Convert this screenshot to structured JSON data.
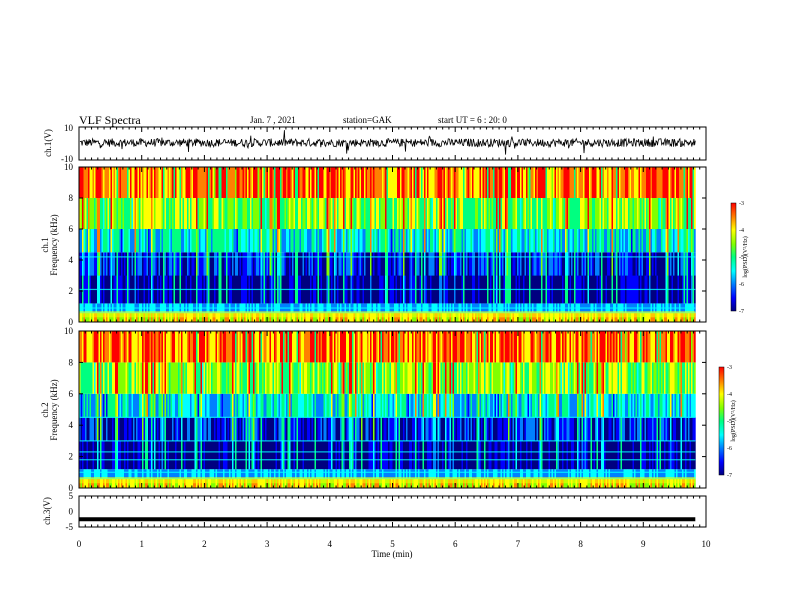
{
  "header": {
    "title": "VLF Spectra",
    "date": "Jan. 7 , 2021",
    "station": "station=GAK",
    "start_ut": "start UT = 6 : 20: 0"
  },
  "colors": {
    "spectrogram_scale": [
      "#000080",
      "#0000ff",
      "#0080ff",
      "#00ffff",
      "#00ff80",
      "#80ff00",
      "#ffff00",
      "#ff8000",
      "#ff0000"
    ],
    "background": "#ffffff",
    "axis": "#000000"
  },
  "chart_data": [
    {
      "type": "line",
      "name": "ch1-waveform",
      "ylabel": "ch.1(V)",
      "ylim": [
        -10,
        10
      ],
      "yticks": [
        "-10",
        "10"
      ],
      "xlim": [
        0,
        10
      ],
      "x_unit": "min",
      "baseline": 0.5,
      "amplitude": 2.5,
      "grid": false
    },
    {
      "type": "heatmap",
      "name": "ch1-spectrogram",
      "panel_label": "ch.1",
      "ylabel": "Frequency (kHz)",
      "ylim": [
        0,
        10
      ],
      "yticks": [
        "0",
        "2",
        "4",
        "6",
        "8",
        "10"
      ],
      "xlim": [
        0,
        10
      ],
      "data_end_min": 9.83,
      "colorbar": {
        "label": "log(PSD)(V²/Hz)",
        "range": [
          -7,
          -3
        ],
        "ticks": [
          "-3",
          "-4",
          "-5",
          "-6",
          "-7"
        ]
      }
    },
    {
      "type": "heatmap",
      "name": "ch2-spectrogram",
      "panel_label": "ch.2",
      "ylabel": "Frequency (kHz)",
      "ylim": [
        0,
        10
      ],
      "yticks": [
        "0",
        "2",
        "4",
        "6",
        "8",
        "10"
      ],
      "xlim": [
        0,
        10
      ],
      "data_end_min": 9.83,
      "colorbar": {
        "label": "log(PSD)(V²/Hz)",
        "range": [
          -7,
          -3
        ],
        "ticks": [
          "-3",
          "-4",
          "-5",
          "-6",
          "-7"
        ]
      }
    },
    {
      "type": "line",
      "name": "ch3-waveform",
      "ylabel": "ch.3(V)",
      "ylim": [
        -5,
        5
      ],
      "yticks": [
        "-5",
        "0",
        "5"
      ],
      "xlim": [
        0,
        10
      ],
      "constant_value": -2.5,
      "xlabel": "Time (min)",
      "xticks": [
        "0",
        "1",
        "2",
        "3",
        "4",
        "5",
        "6",
        "7",
        "8",
        "9",
        "10"
      ]
    }
  ]
}
